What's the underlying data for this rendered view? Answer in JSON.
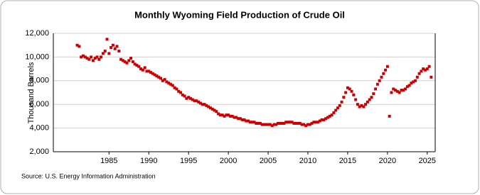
{
  "chart_data": {
    "type": "scatter",
    "title": "Monthly Wyoming Field Production of Crude Oil",
    "y_label": "Thousand Barrels",
    "source": "Source: U.S. Energy Information Administration",
    "xlim": [
      1978,
      2026
    ],
    "xticks": [
      1985,
      1990,
      1995,
      2000,
      2005,
      2010,
      2015,
      2020,
      2025
    ],
    "ylim": [
      2000,
      12000
    ],
    "yticks": [
      {
        "value": 2000,
        "label": "2,000"
      },
      {
        "value": 4000,
        "label": "4,000"
      },
      {
        "value": 6000,
        "label": "6,000"
      },
      {
        "value": 8000,
        "label": "8,000"
      },
      {
        "value": 10000,
        "label": "10,000"
      },
      {
        "value": 12000,
        "label": "12,000"
      }
    ],
    "grid": true,
    "color": "#cc0000",
    "x": [
      1981,
      1981.25,
      1981.5,
      1981.75,
      1982,
      1982.25,
      1982.5,
      1982.75,
      1983,
      1983.25,
      1983.5,
      1983.75,
      1984,
      1984.25,
      1984.5,
      1984.75,
      1985,
      1985.25,
      1985.5,
      1985.75,
      1986,
      1986.25,
      1986.5,
      1986.75,
      1987,
      1987.25,
      1987.5,
      1987.75,
      1988,
      1988.25,
      1988.5,
      1988.75,
      1989,
      1989.25,
      1989.5,
      1989.75,
      1990,
      1990.25,
      1990.5,
      1990.75,
      1991,
      1991.25,
      1991.5,
      1991.75,
      1992,
      1992.25,
      1992.5,
      1992.75,
      1993,
      1993.25,
      1993.5,
      1993.75,
      1994,
      1994.25,
      1994.5,
      1994.75,
      1995,
      1995.25,
      1995.5,
      1995.75,
      1996,
      1996.25,
      1996.5,
      1996.75,
      1997,
      1997.25,
      1997.5,
      1997.75,
      1998,
      1998.25,
      1998.5,
      1998.75,
      1999,
      1999.25,
      1999.5,
      1999.75,
      2000,
      2000.25,
      2000.5,
      2000.75,
      2001,
      2001.25,
      2001.5,
      2001.75,
      2002,
      2002.25,
      2002.5,
      2002.75,
      2003,
      2003.25,
      2003.5,
      2003.75,
      2004,
      2004.25,
      2004.5,
      2004.75,
      2005,
      2005.25,
      2005.5,
      2005.75,
      2006,
      2006.25,
      2006.5,
      2006.75,
      2007,
      2007.25,
      2007.5,
      2007.75,
      2008,
      2008.25,
      2008.5,
      2008.75,
      2009,
      2009.25,
      2009.5,
      2009.75,
      2010,
      2010.25,
      2010.5,
      2010.75,
      2011,
      2011.25,
      2011.5,
      2011.75,
      2012,
      2012.25,
      2012.5,
      2012.75,
      2013,
      2013.25,
      2013.5,
      2013.75,
      2014,
      2014.25,
      2014.5,
      2014.75,
      2015,
      2015.25,
      2015.5,
      2015.75,
      2016,
      2016.25,
      2016.5,
      2016.75,
      2017,
      2017.25,
      2017.5,
      2017.75,
      2018,
      2018.25,
      2018.5,
      2018.75,
      2019,
      2019.25,
      2019.5,
      2019.75,
      2020,
      2020.25,
      2020.5,
      2020.75,
      2021,
      2021.25,
      2021.5,
      2021.75,
      2022,
      2022.25,
      2022.5,
      2022.75,
      2023,
      2023.25,
      2023.5,
      2023.75,
      2024,
      2024.25,
      2024.5,
      2024.75,
      2025,
      2025.25,
      2025.5
    ],
    "values": [
      11000,
      10900,
      10000,
      10100,
      10000,
      9900,
      9800,
      10000,
      9700,
      9900,
      10000,
      9800,
      10000,
      10300,
      10500,
      11500,
      10300,
      10800,
      11000,
      10700,
      10900,
      10500,
      9800,
      9700,
      9600,
      9500,
      9700,
      9900,
      9600,
      9400,
      9300,
      9200,
      9000,
      8900,
      9100,
      8800,
      8800,
      8700,
      8600,
      8500,
      8400,
      8300,
      8200,
      8000,
      8100,
      7900,
      7800,
      7700,
      7600,
      7400,
      7300,
      7100,
      7000,
      6800,
      6700,
      6500,
      6600,
      6500,
      6400,
      6300,
      6300,
      6200,
      6100,
      6000,
      6000,
      5900,
      5800,
      5700,
      5600,
      5500,
      5400,
      5200,
      5100,
      5100,
      5000,
      5100,
      5100,
      5000,
      5000,
      4900,
      4900,
      4800,
      4800,
      4700,
      4700,
      4600,
      4600,
      4500,
      4500,
      4500,
      4400,
      4400,
      4400,
      4300,
      4300,
      4300,
      4300,
      4300,
      4200,
      4300,
      4300,
      4400,
      4400,
      4400,
      4400,
      4500,
      4500,
      4500,
      4500,
      4400,
      4400,
      4400,
      4400,
      4300,
      4300,
      4200,
      4300,
      4300,
      4400,
      4500,
      4500,
      4500,
      4600,
      4700,
      4700,
      4800,
      4900,
      5000,
      5100,
      5300,
      5500,
      5700,
      5900,
      6200,
      6600,
      7000,
      7400,
      7300,
      7100,
      6800,
      6400,
      6000,
      5800,
      5900,
      5800,
      6000,
      6200,
      6400,
      6600,
      6900,
      7300,
      7700,
      8000,
      8300,
      8600,
      8900,
      9200,
      5000,
      7000,
      7300,
      7200,
      7100,
      7000,
      7200,
      7200,
      7300,
      7500,
      7600,
      7800,
      7900,
      8000,
      8300,
      8600,
      8800,
      9000,
      8900,
      9000,
      9200,
      8300
    ]
  }
}
